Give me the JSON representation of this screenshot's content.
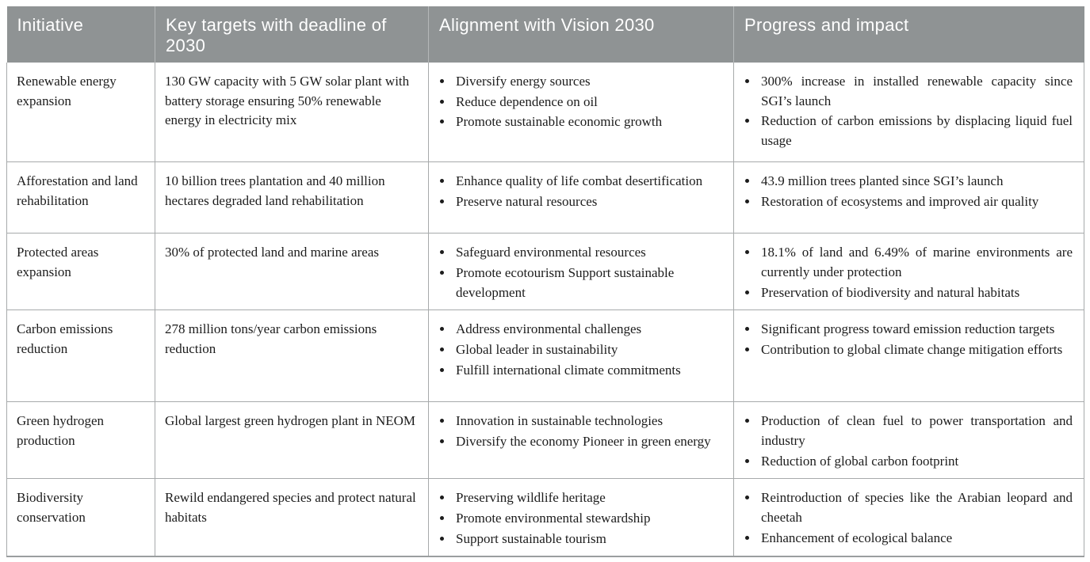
{
  "colors": {
    "header_bg": "#8f9394",
    "header_text": "#ffffff",
    "body_text": "#1c1c1c",
    "border": "#a7aaab"
  },
  "table": {
    "columns": [
      "Initiative",
      "Key targets with deadline of 2030",
      "Alignment with Vision 2030",
      "Progress and impact"
    ],
    "rows": [
      {
        "initiative": "Renewable energy expansion",
        "targets": "130 GW capacity with 5 GW solar plant with battery storage ensuring 50% renewable energy in electricity mix",
        "alignment": [
          "Diversify energy sources",
          "Reduce dependence on oil",
          "Promote sustainable economic growth"
        ],
        "progress": [
          "300% increase in installed renewable capacity since SGI’s launch",
          "Reduction of carbon emissions by displacing liquid fuel usage"
        ]
      },
      {
        "initiative": "Afforestation and land rehabilitation",
        "targets": "10 billion trees plantation and 40 million hectares degraded land rehabilitation",
        "alignment": [
          "Enhance quality of life combat desertification",
          "Preserve natural resources"
        ],
        "progress": [
          "43.9 million trees planted since SGI’s launch",
          "Restoration of ecosystems and improved air quality"
        ]
      },
      {
        "initiative": "Protected areas expansion",
        "targets": "30% of protected land and marine areas",
        "alignment": [
          "Safeguard environmental resources",
          "Promote ecotourism Support sustainable development"
        ],
        "progress": [
          "18.1% of land and 6.49% of marine environments are currently under protection",
          "Preservation of biodiversity and natural habitats"
        ]
      },
      {
        "initiative": "Carbon emissions reduction",
        "targets": "278 million tons/year carbon emissions reduction",
        "alignment": [
          "Address environmental challenges",
          "Global leader in sustainability",
          "Fulfill international climate commitments"
        ],
        "progress": [
          "Significant progress toward emission reduction targets",
          "Contribution to global climate change mitigation efforts"
        ]
      },
      {
        "initiative": "Green hydrogen production",
        "targets": "Global largest green hydrogen plant in NEOM",
        "alignment": [
          "Innovation in sustainable technologies",
          "Diversify the economy Pioneer in green energy"
        ],
        "progress": [
          "Production of clean fuel to power transportation and industry",
          "Reduction of global carbon footprint"
        ]
      },
      {
        "initiative": "Biodiversity conservation",
        "targets": "Rewild endangered species and protect natural habitats",
        "alignment": [
          "Preserving wildlife heritage",
          "Promote environmental stewardship",
          "Support sustainable tourism"
        ],
        "progress": [
          "Reintroduction of species like the Arabian leopard and cheetah",
          "Enhancement of ecological balance"
        ]
      }
    ]
  }
}
